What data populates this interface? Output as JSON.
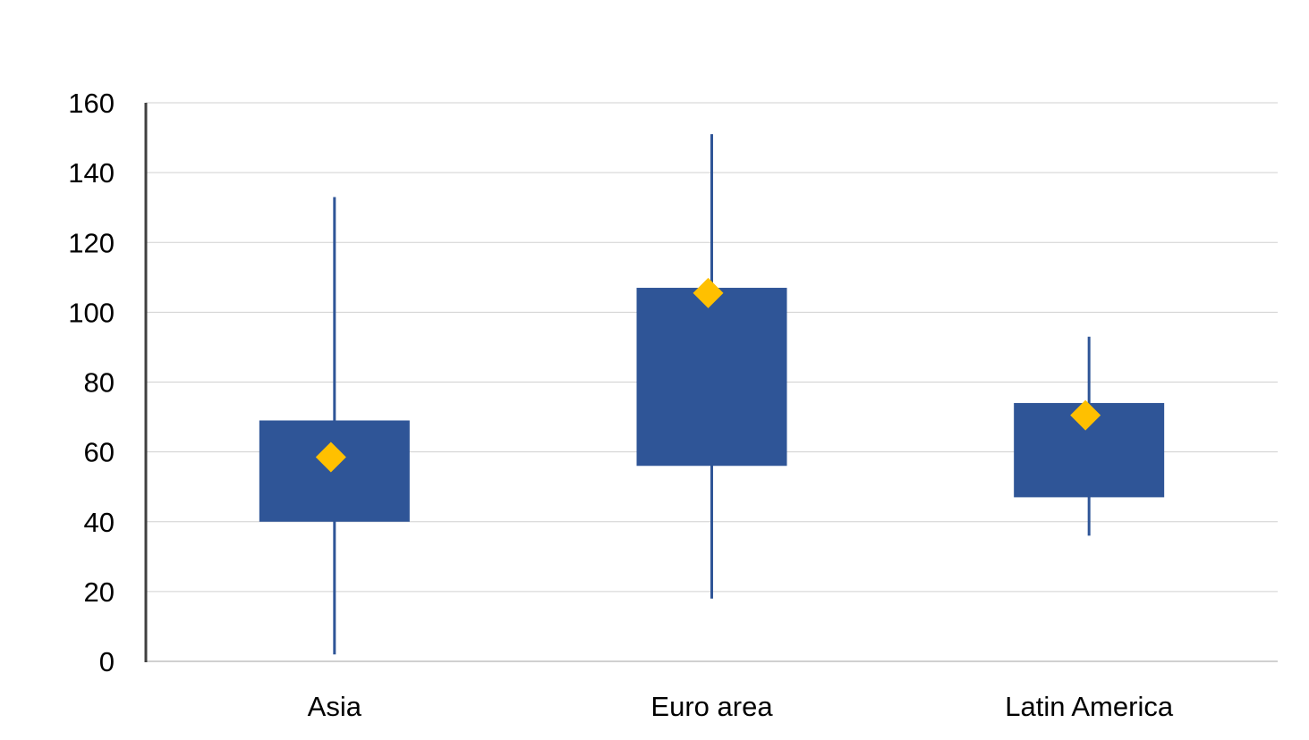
{
  "chart_data": {
    "type": "box",
    "title": "",
    "xlabel": "",
    "ylabel": "",
    "ylim": [
      0,
      160
    ],
    "yticks": [
      "0",
      "20",
      "40",
      "60",
      "80",
      "100",
      "120",
      "140",
      "160"
    ],
    "grid": true,
    "legend": "none",
    "categories": [
      "Asia",
      "Euro area",
      "Latin America"
    ],
    "whisker_low": [
      2,
      18,
      36
    ],
    "box_low": [
      40,
      56,
      47
    ],
    "box_high": [
      69,
      107,
      74
    ],
    "whisker_high": [
      133,
      151,
      93
    ],
    "marker": [
      58.5,
      105.5,
      70.5
    ]
  },
  "colors": {
    "box": "#2f5597",
    "whisker": "#2f5597",
    "marker": "#ffc000",
    "grid": "#d0d0d0",
    "axis": "#404040"
  }
}
